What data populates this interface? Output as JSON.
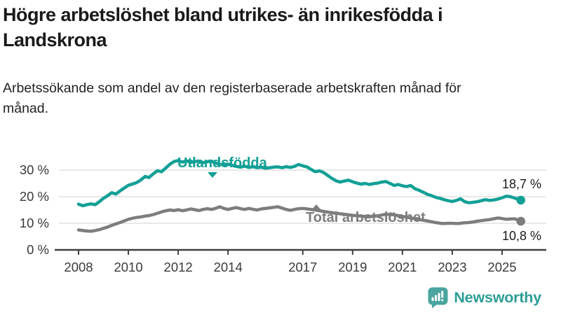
{
  "header": {
    "title": "Högre arbetslöshet bland utrikes- än inrikesfödda i Landskrona",
    "subtitle": "Arbetssökande som andel av den registerbaserade arbetskraften månad för månad."
  },
  "chart_data": {
    "type": "line",
    "title": "",
    "xlabel": "",
    "ylabel": "",
    "grid": true,
    "legend_position": "inline-labels-on-lines",
    "x_axis": {
      "min": 2008,
      "max": 2025.75,
      "ticks": [
        2008,
        2010,
        2012,
        2014,
        2017,
        2019,
        2021,
        2023,
        2025
      ]
    },
    "y_axis": {
      "min": 0,
      "max": 35,
      "ticks": [
        0,
        10,
        20,
        30
      ],
      "suffix": " %"
    },
    "series": [
      {
        "name": "Utlandsfödda",
        "color": "#12A096",
        "end_label": "18,7 %",
        "end_value": 18.7,
        "points": [
          [
            2008.0,
            17.2
          ],
          [
            2008.17,
            16.6
          ],
          [
            2008.33,
            17.0
          ],
          [
            2008.5,
            17.3
          ],
          [
            2008.67,
            17.0
          ],
          [
            2008.83,
            18.1
          ],
          [
            2009.0,
            19.4
          ],
          [
            2009.17,
            20.4
          ],
          [
            2009.33,
            21.5
          ],
          [
            2009.5,
            21.0
          ],
          [
            2009.67,
            22.2
          ],
          [
            2009.83,
            23.2
          ],
          [
            2010.0,
            24.3
          ],
          [
            2010.17,
            24.8
          ],
          [
            2010.33,
            25.3
          ],
          [
            2010.5,
            26.3
          ],
          [
            2010.67,
            27.6
          ],
          [
            2010.83,
            27.2
          ],
          [
            2011.0,
            28.6
          ],
          [
            2011.17,
            29.8
          ],
          [
            2011.33,
            29.4
          ],
          [
            2011.5,
            30.8
          ],
          [
            2011.67,
            32.2
          ],
          [
            2011.83,
            33.2
          ],
          [
            2012.0,
            33.6
          ],
          [
            2012.17,
            33.0
          ],
          [
            2012.33,
            33.5
          ],
          [
            2012.5,
            32.9
          ],
          [
            2012.67,
            33.2
          ],
          [
            2012.83,
            33.4
          ],
          [
            2013.0,
            32.8
          ],
          [
            2013.17,
            33.1
          ],
          [
            2013.33,
            33.4
          ],
          [
            2013.5,
            32.6
          ],
          [
            2013.67,
            32.2
          ],
          [
            2013.83,
            31.9
          ],
          [
            2014.0,
            32.3
          ],
          [
            2014.17,
            31.8
          ],
          [
            2014.33,
            31.4
          ],
          [
            2014.5,
            31.1
          ],
          [
            2014.67,
            31.5
          ],
          [
            2014.83,
            31.0
          ],
          [
            2015.0,
            31.3
          ],
          [
            2015.17,
            30.9
          ],
          [
            2015.33,
            31.1
          ],
          [
            2015.5,
            30.7
          ],
          [
            2015.67,
            30.9
          ],
          [
            2015.83,
            31.1
          ],
          [
            2016.0,
            31.2
          ],
          [
            2016.17,
            30.9
          ],
          [
            2016.33,
            31.3
          ],
          [
            2016.5,
            31.0
          ],
          [
            2016.67,
            31.4
          ],
          [
            2016.83,
            32.1
          ],
          [
            2017.0,
            31.6
          ],
          [
            2017.17,
            31.2
          ],
          [
            2017.33,
            30.3
          ],
          [
            2017.5,
            29.4
          ],
          [
            2017.67,
            29.7
          ],
          [
            2017.83,
            29.1
          ],
          [
            2018.0,
            28.0
          ],
          [
            2018.17,
            26.9
          ],
          [
            2018.33,
            26.0
          ],
          [
            2018.5,
            25.5
          ],
          [
            2018.67,
            25.9
          ],
          [
            2018.83,
            26.2
          ],
          [
            2019.0,
            25.6
          ],
          [
            2019.17,
            25.1
          ],
          [
            2019.33,
            24.7
          ],
          [
            2019.5,
            25.0
          ],
          [
            2019.67,
            24.6
          ],
          [
            2019.83,
            24.9
          ],
          [
            2020.0,
            25.1
          ],
          [
            2020.17,
            25.5
          ],
          [
            2020.33,
            25.7
          ],
          [
            2020.5,
            25.0
          ],
          [
            2020.67,
            24.2
          ],
          [
            2020.83,
            24.6
          ],
          [
            2021.0,
            24.1
          ],
          [
            2021.17,
            23.8
          ],
          [
            2021.33,
            24.2
          ],
          [
            2021.5,
            23.0
          ],
          [
            2021.67,
            22.4
          ],
          [
            2021.83,
            21.7
          ],
          [
            2022.0,
            20.9
          ],
          [
            2022.17,
            20.4
          ],
          [
            2022.33,
            19.8
          ],
          [
            2022.5,
            19.4
          ],
          [
            2022.67,
            18.9
          ],
          [
            2022.83,
            18.5
          ],
          [
            2023.0,
            18.2
          ],
          [
            2023.17,
            18.6
          ],
          [
            2023.33,
            19.2
          ],
          [
            2023.5,
            18.1
          ],
          [
            2023.67,
            17.7
          ],
          [
            2023.83,
            17.9
          ],
          [
            2024.0,
            18.1
          ],
          [
            2024.17,
            18.5
          ],
          [
            2024.33,
            18.9
          ],
          [
            2024.5,
            18.6
          ],
          [
            2024.67,
            18.8
          ],
          [
            2024.83,
            19.1
          ],
          [
            2025.0,
            19.6
          ],
          [
            2025.17,
            20.2
          ],
          [
            2025.33,
            20.0
          ],
          [
            2025.5,
            19.5
          ],
          [
            2025.75,
            18.7
          ]
        ]
      },
      {
        "name": "Total arbetslöshet",
        "color": "#7D7D7D",
        "end_label": "10,8 %",
        "end_value": 10.8,
        "points": [
          [
            2008.0,
            7.5
          ],
          [
            2008.17,
            7.3
          ],
          [
            2008.33,
            7.1
          ],
          [
            2008.5,
            7.0
          ],
          [
            2008.67,
            7.3
          ],
          [
            2008.83,
            7.6
          ],
          [
            2009.0,
            8.1
          ],
          [
            2009.17,
            8.6
          ],
          [
            2009.33,
            9.2
          ],
          [
            2009.5,
            9.8
          ],
          [
            2009.67,
            10.3
          ],
          [
            2009.83,
            10.9
          ],
          [
            2010.0,
            11.5
          ],
          [
            2010.17,
            11.9
          ],
          [
            2010.33,
            12.2
          ],
          [
            2010.5,
            12.4
          ],
          [
            2010.67,
            12.7
          ],
          [
            2010.83,
            12.9
          ],
          [
            2011.0,
            13.3
          ],
          [
            2011.17,
            13.8
          ],
          [
            2011.33,
            14.3
          ],
          [
            2011.5,
            14.7
          ],
          [
            2011.67,
            15.0
          ],
          [
            2011.83,
            14.8
          ],
          [
            2012.0,
            15.1
          ],
          [
            2012.17,
            14.7
          ],
          [
            2012.33,
            15.0
          ],
          [
            2012.5,
            15.4
          ],
          [
            2012.67,
            15.1
          ],
          [
            2012.83,
            14.8
          ],
          [
            2013.0,
            15.2
          ],
          [
            2013.17,
            15.5
          ],
          [
            2013.33,
            15.2
          ],
          [
            2013.5,
            15.6
          ],
          [
            2013.67,
            16.2
          ],
          [
            2013.83,
            15.6
          ],
          [
            2014.0,
            15.2
          ],
          [
            2014.17,
            15.6
          ],
          [
            2014.33,
            15.9
          ],
          [
            2014.5,
            15.5
          ],
          [
            2014.67,
            15.2
          ],
          [
            2014.83,
            15.6
          ],
          [
            2015.0,
            15.3
          ],
          [
            2015.17,
            15.0
          ],
          [
            2015.33,
            15.4
          ],
          [
            2015.67,
            15.8
          ],
          [
            2015.83,
            16.0
          ],
          [
            2016.0,
            16.2
          ],
          [
            2016.17,
            15.7
          ],
          [
            2016.33,
            15.2
          ],
          [
            2016.5,
            14.9
          ],
          [
            2016.67,
            15.2
          ],
          [
            2016.83,
            15.5
          ],
          [
            2017.0,
            15.6
          ],
          [
            2017.25,
            15.3
          ],
          [
            2017.5,
            15.0
          ],
          [
            2017.75,
            14.6
          ],
          [
            2018.0,
            14.2
          ],
          [
            2018.33,
            13.8
          ],
          [
            2018.67,
            13.4
          ],
          [
            2019.0,
            13.0
          ],
          [
            2019.33,
            12.7
          ],
          [
            2019.67,
            12.5
          ],
          [
            2020.0,
            12.8
          ],
          [
            2020.33,
            13.4
          ],
          [
            2020.67,
            13.2
          ],
          [
            2021.0,
            12.6
          ],
          [
            2021.33,
            12.0
          ],
          [
            2021.67,
            11.4
          ],
          [
            2022.0,
            10.9
          ],
          [
            2022.33,
            10.3
          ],
          [
            2022.6,
            9.9
          ],
          [
            2022.83,
            10.0
          ],
          [
            2023.0,
            10.0
          ],
          [
            2023.17,
            9.9
          ],
          [
            2023.33,
            10.0
          ],
          [
            2023.5,
            10.2
          ],
          [
            2023.67,
            10.3
          ],
          [
            2023.83,
            10.5
          ],
          [
            2024.0,
            10.8
          ],
          [
            2024.17,
            11.0
          ],
          [
            2024.33,
            11.2
          ],
          [
            2024.5,
            11.4
          ],
          [
            2024.67,
            11.7
          ],
          [
            2024.83,
            12.0
          ],
          [
            2025.0,
            11.8
          ],
          [
            2025.17,
            11.5
          ],
          [
            2025.33,
            11.6
          ],
          [
            2025.5,
            11.7
          ],
          [
            2025.75,
            10.8
          ]
        ]
      }
    ]
  },
  "footer": {
    "brand": "Newsworthy",
    "brand_color": "#2D9E97",
    "logo_icon": "bar-chart-exclamation-badge",
    "logo_badge_color": "#4AA49F"
  },
  "colors": {
    "background": "#ffffff",
    "grid": "#DBDBDB",
    "axis": "#3F3F3F",
    "axis_text": "#3A3A3A",
    "value_label_text": "#1A1A1A"
  }
}
